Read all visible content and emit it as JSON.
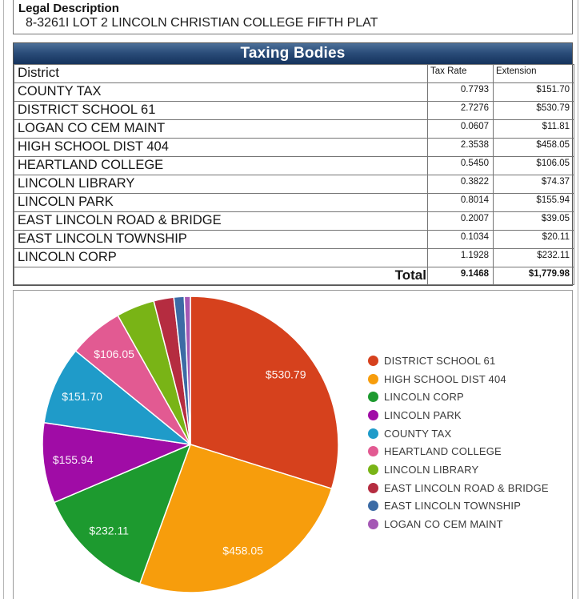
{
  "legal": {
    "title": "Legal Description",
    "value": "8-3261I LOT 2 LINCOLN CHRISTIAN COLLEGE FIFTH PLAT"
  },
  "taxing_bodies": {
    "title": "Taxing Bodies",
    "columns": [
      "District",
      "Tax Rate",
      "Extension"
    ],
    "rows": [
      [
        "COUNTY TAX",
        "0.7793",
        "$151.70"
      ],
      [
        "DISTRICT SCHOOL 61",
        "2.7276",
        "$530.79"
      ],
      [
        "LOGAN CO CEM MAINT",
        "0.0607",
        "$11.81"
      ],
      [
        "HIGH SCHOOL DIST 404",
        "2.3538",
        "$458.05"
      ],
      [
        "HEARTLAND COLLEGE",
        "0.5450",
        "$106.05"
      ],
      [
        "LINCOLN LIBRARY",
        "0.3822",
        "$74.37"
      ],
      [
        "LINCOLN PARK",
        "0.8014",
        "$155.94"
      ],
      [
        "EAST LINCOLN ROAD & BRIDGE",
        "0.2007",
        "$39.05"
      ],
      [
        "EAST LINCOLN TOWNSHIP",
        "0.1034",
        "$20.11"
      ],
      [
        "LINCOLN CORP",
        "1.1928",
        "$232.11"
      ]
    ],
    "total": {
      "label": "Total",
      "tax_rate": "9.1468",
      "extension": "$1,779.98"
    }
  },
  "chart_data": {
    "type": "pie",
    "direction": "clockwise",
    "start_angle_deg": 0,
    "legend_position": "right",
    "total": 1779.98,
    "slices": [
      {
        "name": "DISTRICT SCHOOL 61",
        "value": 530.79,
        "label": "$530.79",
        "color": "#d6411d",
        "show_label": true
      },
      {
        "name": "HIGH SCHOOL DIST 404",
        "value": 458.05,
        "label": "$458.05",
        "color": "#f79d0c",
        "show_label": true
      },
      {
        "name": "LINCOLN CORP",
        "value": 232.11,
        "label": "$232.11",
        "color": "#1d9a2f",
        "show_label": true
      },
      {
        "name": "LINCOLN PARK",
        "value": 155.94,
        "label": "$155.94",
        "color": "#a00ca6",
        "show_label": true
      },
      {
        "name": "COUNTY TAX",
        "value": 151.7,
        "label": "$151.70",
        "color": "#1f9bc9",
        "show_label": true
      },
      {
        "name": "HEARTLAND COLLEGE",
        "value": 106.05,
        "label": "$106.05",
        "color": "#e25a92",
        "show_label": true
      },
      {
        "name": "LINCOLN LIBRARY",
        "value": 74.37,
        "label": "$74.37",
        "color": "#79b416",
        "show_label": false
      },
      {
        "name": "EAST LINCOLN ROAD & BRIDGE",
        "value": 39.05,
        "label": "$39.05",
        "color": "#b52c40",
        "show_label": false
      },
      {
        "name": "EAST LINCOLN TOWNSHIP",
        "value": 20.11,
        "label": "$20.11",
        "color": "#3c6ba5",
        "show_label": false
      },
      {
        "name": "LOGAN CO CEM MAINT",
        "value": 11.81,
        "label": "$11.81",
        "color": "#a558b5",
        "show_label": false
      }
    ]
  }
}
